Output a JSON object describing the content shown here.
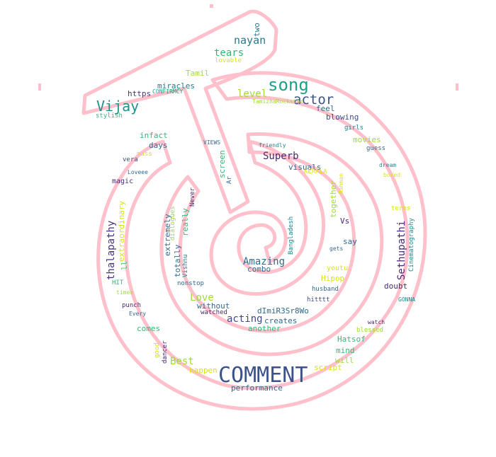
{
  "palette": {
    "outline": "#ffc0cb",
    "dark_purple": "#46327e",
    "indigo": "#365c8d",
    "teal": "#277f8e",
    "green": "#1fa187",
    "light_green": "#4ac16d",
    "lime": "#a0da39",
    "yellow": "#d8e219"
  },
  "words": [
    {
      "text": "COMMENT",
      "color": "#3b528b"
    },
    {
      "text": "song",
      "color": "#1fa187"
    },
    {
      "text": "Vijay",
      "color": "#21918c"
    },
    {
      "text": "actor",
      "color": "#3b528b"
    },
    {
      "text": "nayan",
      "color": "#2a788e"
    },
    {
      "text": "tears",
      "color": "#35b779"
    },
    {
      "text": "two",
      "color": "#2a788e"
    },
    {
      "text": "lovable",
      "color": "#d8e219"
    },
    {
      "text": "Tamil",
      "color": "#a0da39"
    },
    {
      "text": "miracles",
      "color": "#2a788e"
    },
    {
      "text": "CONFIRMCY",
      "color": "#1fa187"
    },
    {
      "text": "https",
      "color": "#46327e"
    },
    {
      "text": "level",
      "color": "#a0da39"
    },
    {
      "text": "TamizhaRockstar",
      "color": "#a0da39"
    },
    {
      "text": "feel",
      "color": "#31688e"
    },
    {
      "text": "stylish",
      "color": "#35b779"
    },
    {
      "text": "blowing",
      "color": "#3e4989"
    },
    {
      "text": "girls",
      "color": "#2a788e"
    },
    {
      "text": "movies",
      "color": "#a0da39"
    },
    {
      "text": "guess",
      "color": "#31688e"
    },
    {
      "text": "infact",
      "color": "#35b779"
    },
    {
      "text": "days",
      "color": "#31688e"
    },
    {
      "text": "mass",
      "color": "#d8e219"
    },
    {
      "text": "VIEWS",
      "color": "#31688e"
    },
    {
      "text": "friendly",
      "color": "#26828e"
    },
    {
      "text": "Superb",
      "color": "#482878"
    },
    {
      "text": "visuals",
      "color": "#31688e"
    },
    {
      "text": "dream",
      "color": "#26828e"
    },
    {
      "text": "bored",
      "color": "#d8e219"
    },
    {
      "text": "vera",
      "color": "#3e4989"
    },
    {
      "text": "Loveee",
      "color": "#31688e"
    },
    {
      "text": "magic",
      "color": "#482878"
    },
    {
      "text": "screen",
      "color": "#35b779"
    },
    {
      "text": "Ar",
      "color": "#31688e"
    },
    {
      "text": "KERALA",
      "color": "#d8e219"
    },
    {
      "text": "Rahman",
      "color": "#d8e219"
    },
    {
      "text": "terms",
      "color": "#d8e219"
    },
    {
      "text": "Vs",
      "color": "#482878"
    },
    {
      "text": "say",
      "color": "#31688e"
    },
    {
      "text": "gets",
      "color": "#31688e"
    },
    {
      "text": "Amazing",
      "color": "#31688e"
    },
    {
      "text": "combo",
      "color": "#31688e"
    },
    {
      "text": "youtu",
      "color": "#d8e219"
    },
    {
      "text": "Hipop",
      "color": "#d8e219"
    },
    {
      "text": "doubt",
      "color": "#482878"
    },
    {
      "text": "husband",
      "color": "#31688e"
    },
    {
      "text": "hitttt",
      "color": "#3e4989"
    },
    {
      "text": "GONNA",
      "color": "#26828e"
    },
    {
      "text": "HIT",
      "color": "#35b779"
    },
    {
      "text": "times",
      "color": "#a0da39"
    },
    {
      "text": "punch",
      "color": "#482878"
    },
    {
      "text": "Every",
      "color": "#31688e"
    },
    {
      "text": "Love",
      "color": "#a0da39"
    },
    {
      "text": "without",
      "color": "#31688e"
    },
    {
      "text": "watched",
      "color": "#482878"
    },
    {
      "text": "dImiR3Sr8Wo",
      "color": "#31688e"
    },
    {
      "text": "acting",
      "color": "#3e4989"
    },
    {
      "text": "creates",
      "color": "#31688e"
    },
    {
      "text": "another",
      "color": "#35b779"
    },
    {
      "text": "watch",
      "color": "#482878"
    },
    {
      "text": "blessed",
      "color": "#a0da39"
    },
    {
      "text": "comes",
      "color": "#35b779"
    },
    {
      "text": "Hatsof",
      "color": "#35b779"
    },
    {
      "text": "mind",
      "color": "#35b779"
    },
    {
      "text": "will",
      "color": "#a0da39"
    },
    {
      "text": "script",
      "color": "#d8e219"
    },
    {
      "text": "Best",
      "color": "#a0da39"
    },
    {
      "text": "happen",
      "color": "#d8e219"
    },
    {
      "text": "performance",
      "color": "#31688e"
    },
    {
      "text": "nonstop",
      "color": "#31688e"
    },
    {
      "text": "thalapathy",
      "color": "#46327e"
    },
    {
      "text": "extraordinary",
      "color": "#d8e219"
    },
    {
      "text": "ll",
      "color": "#4ac16d"
    },
    {
      "text": "extremely",
      "color": "#31688e"
    },
    {
      "text": "dialogues",
      "color": "#a0da39"
    },
    {
      "text": "really",
      "color": "#35b779"
    },
    {
      "text": "Never",
      "color": "#482878"
    },
    {
      "text": "totally",
      "color": "#31688e"
    },
    {
      "text": "Vishnu",
      "color": "#26828e"
    },
    {
      "text": "good",
      "color": "#d8e219"
    },
    {
      "text": "dancer",
      "color": "#482878"
    },
    {
      "text": "Bangladesh",
      "color": "#26828e"
    },
    {
      "text": "together",
      "color": "#a0da39"
    },
    {
      "text": "Sethupathi",
      "color": "#482878"
    },
    {
      "text": "Cinematography",
      "color": "#26828e"
    }
  ]
}
